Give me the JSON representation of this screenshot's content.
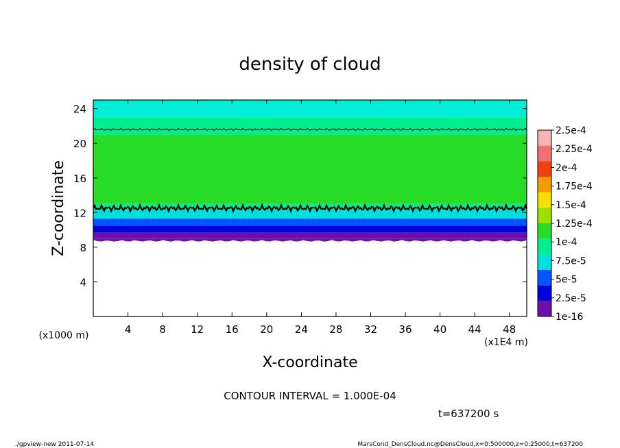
{
  "chart_data": {
    "type": "heatmap",
    "title": "density of cloud",
    "xlabel": "X-coordinate",
    "ylabel": "Z-coordinate",
    "x_scale_note": "(x1E4 m)",
    "y_scale_note": "(x1000 m)",
    "xlim": [
      0,
      50
    ],
    "ylim": [
      0,
      25
    ],
    "x_ticks": [
      "4",
      "8",
      "12",
      "16",
      "20",
      "24",
      "28",
      "32",
      "36",
      "40",
      "44",
      "48"
    ],
    "y_ticks": [
      "4",
      "8",
      "12",
      "16",
      "20",
      "24"
    ],
    "colorbar": {
      "labels": [
        "2.5e-4",
        "2.25e-4",
        "2e-4",
        "1.75e-4",
        "1.5e-4",
        "1.25e-4",
        "1e-4",
        "7.5e-5",
        "5e-5",
        "2.5e-5",
        "1e-16"
      ],
      "colors": [
        "#f5b3b3",
        "#f07070",
        "#f04010",
        "#f59a00",
        "#f5e000",
        "#9be000",
        "#28dc28",
        "#00ee90",
        "#00dede",
        "#0055ff",
        "#0000dd",
        "#6a10a8"
      ]
    },
    "field": {
      "cloud_base_z": 9,
      "cloud_top_z": 25,
      "contours_z": [
        12.5,
        21.6
      ],
      "description_bands": [
        {
          "z_from": 9.0,
          "z_to": 9.7,
          "color": "#6a10a8"
        },
        {
          "z_from": 9.7,
          "z_to": 10.5,
          "color": "#0000dd"
        },
        {
          "z_from": 10.5,
          "z_to": 11.3,
          "color": "#0055ff"
        },
        {
          "z_from": 11.3,
          "z_to": 12.3,
          "color": "#00dede"
        },
        {
          "z_from": 12.3,
          "z_to": 13.0,
          "color": "#00ee90"
        },
        {
          "z_from": 13.0,
          "z_to": 21.0,
          "color": "#28dc28"
        },
        {
          "z_from": 21.0,
          "z_to": 23.0,
          "color": "#00ee90"
        },
        {
          "z_from": 23.0,
          "z_to": 25.0,
          "color": "#00eed8"
        }
      ]
    }
  },
  "annotations": {
    "contour_interval": "CONTOUR INTERVAL = 1.000E-04",
    "time": "t=637200 s",
    "footer_left": "./gpview-new  2011-07-14",
    "footer_right": "MarsCond_DensCloud.nc@DensCloud,x=0:500000,z=0:25000,t=637200"
  }
}
